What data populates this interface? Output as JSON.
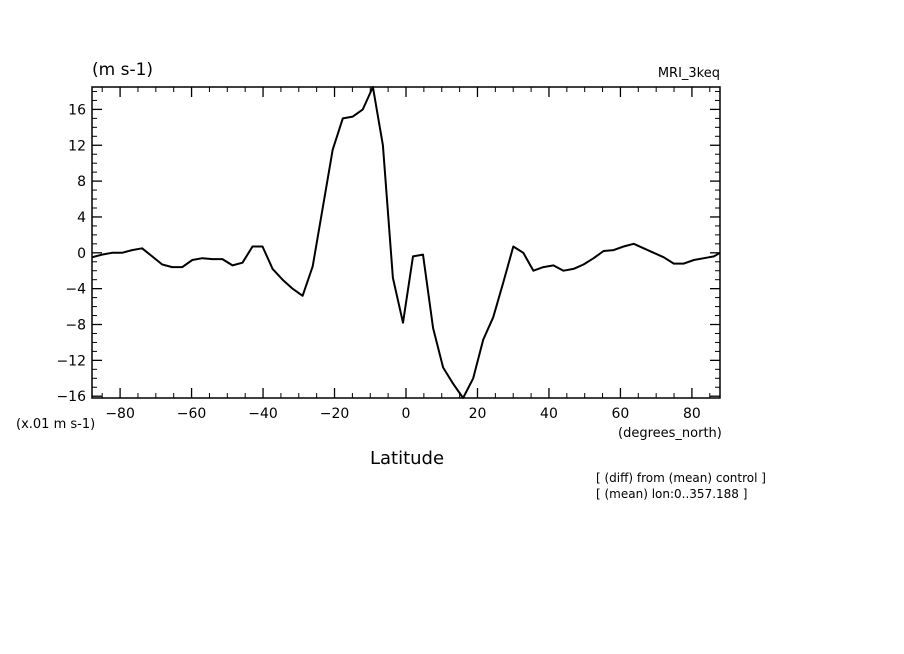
{
  "chart_data": {
    "type": "line",
    "unit_label": "(m s-1)",
    "model_label": "MRI_3keq",
    "scale_label": "(x.01 m s-1)",
    "xlabel": "Latitude",
    "x_units_label": "(degrees_north)",
    "notes": [
      "[ (diff) from (mean) control ]",
      "[ (mean) lon:0..357.188 ]"
    ],
    "xlim": [
      -87.86,
      87.86
    ],
    "ylim": [
      -16.2,
      18.5
    ],
    "x_ticks": [
      -80,
      -60,
      -40,
      -20,
      0,
      20,
      40,
      60,
      80
    ],
    "y_ticks": [
      16,
      12,
      8,
      4,
      0,
      -4,
      -8,
      -12,
      -16
    ],
    "grid": false,
    "series": [
      {
        "x": [
          -87.86,
          -85.05,
          -82.25,
          -79.44,
          -76.63,
          -73.83,
          -71.02,
          -68.21,
          -65.41,
          -62.6,
          -59.79,
          -56.98,
          -54.18,
          -51.37,
          -48.56,
          -45.76,
          -42.95,
          -40.14,
          -37.34,
          -34.53,
          -31.72,
          -28.92,
          -26.11,
          -23.3,
          -20.5,
          -17.69,
          -14.88,
          -12.08,
          -9.27,
          -6.46,
          -3.66,
          -0.85,
          1.96,
          4.77,
          7.57,
          10.38,
          13.19,
          15.99,
          18.8,
          21.61,
          24.41,
          27.22,
          30.03,
          32.83,
          35.64,
          38.45,
          41.25,
          44.06,
          46.87,
          49.67,
          52.48,
          55.29,
          58.09,
          60.9,
          63.71,
          66.51,
          69.32,
          72.13,
          74.94,
          77.74,
          80.55,
          83.36,
          86.16,
          87.86
        ],
        "values": [
          -0.5,
          -0.2,
          0.0,
          0.0,
          0.3,
          0.5,
          -0.4,
          -1.3,
          -1.6,
          -1.6,
          -0.8,
          -0.6,
          -0.7,
          -0.7,
          -1.4,
          -1.1,
          0.7,
          0.7,
          -1.8,
          -3.0,
          -4.0,
          -4.8,
          -1.5,
          5.0,
          11.5,
          15.0,
          15.2,
          16.0,
          18.5,
          12.0,
          -2.8,
          -7.8,
          -0.4,
          -0.2,
          -8.4,
          -12.8,
          -14.6,
          -16.2,
          -14.0,
          -9.7,
          -7.2,
          -3.3,
          0.7,
          0.0,
          -2.0,
          -1.6,
          -1.4,
          -2.0,
          -1.8,
          -1.3,
          -0.6,
          0.2,
          0.3,
          0.7,
          1.0,
          0.5,
          0.0,
          -0.5,
          -1.2,
          -1.2,
          -0.8,
          -0.6,
          -0.4,
          0.0
        ]
      }
    ]
  }
}
